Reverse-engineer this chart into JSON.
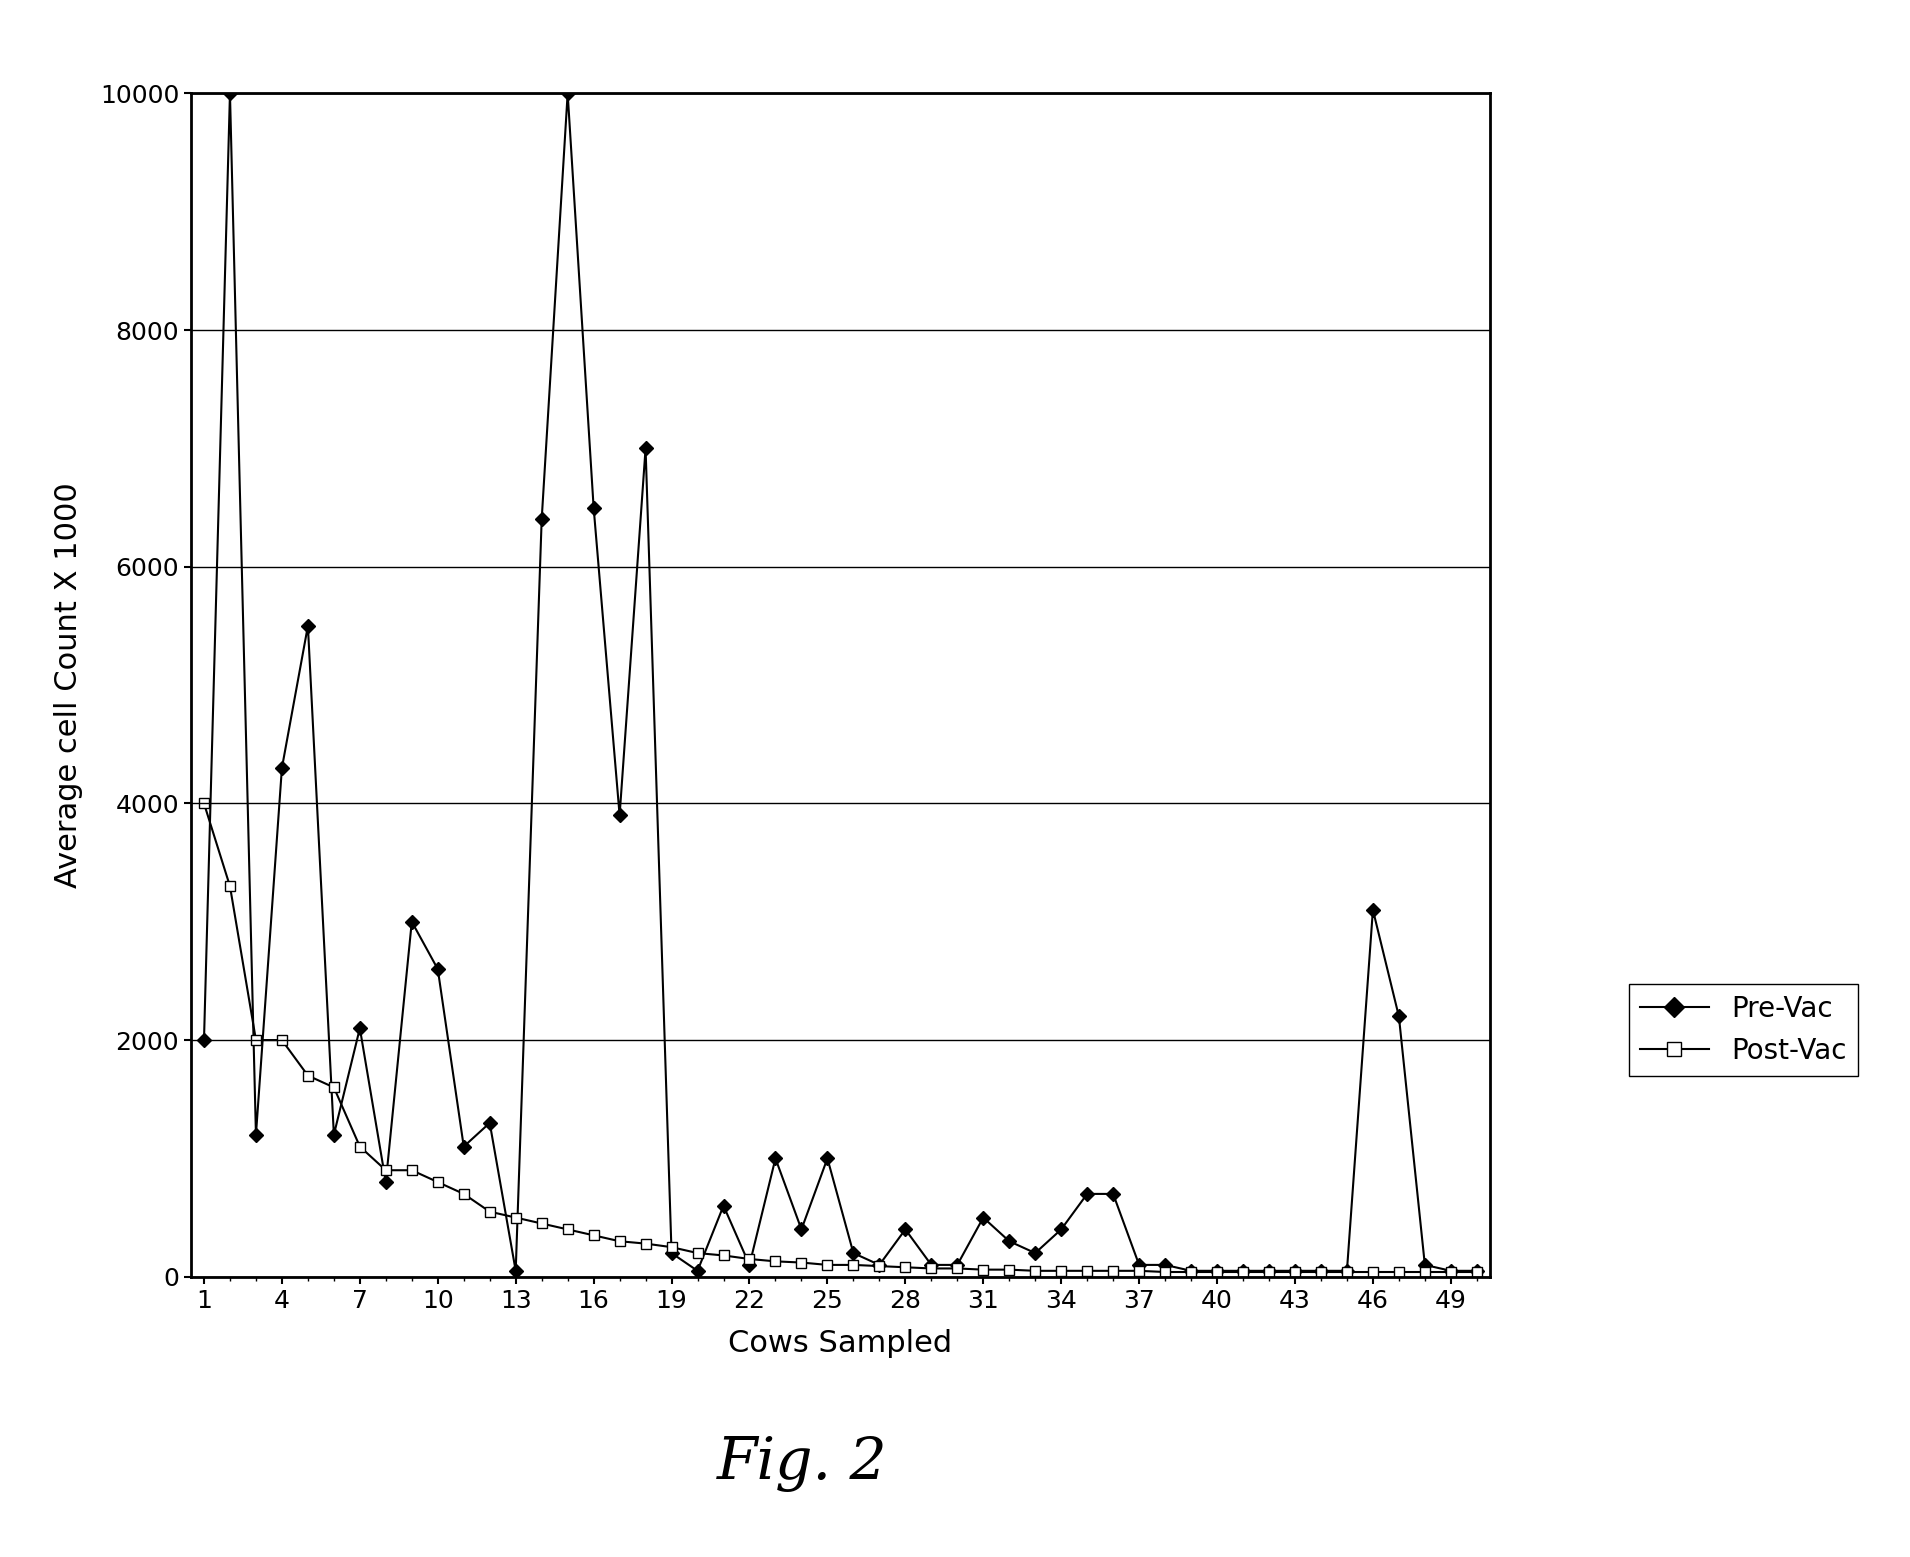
{
  "pre_vac_x": [
    1,
    2,
    3,
    4,
    5,
    6,
    7,
    8,
    9,
    10,
    11,
    12,
    13,
    14,
    15,
    16,
    17,
    18,
    19,
    20,
    21,
    22,
    23,
    24,
    25,
    26,
    27,
    28,
    29,
    30,
    31,
    32,
    33,
    34,
    35,
    36,
    37,
    38,
    39,
    40,
    41,
    42,
    43,
    44,
    45,
    46,
    47,
    48,
    49,
    50
  ],
  "pre_vac_y": [
    2000,
    10000,
    1200,
    4300,
    5500,
    1200,
    2100,
    800,
    3000,
    2600,
    1100,
    1300,
    50,
    6400,
    10000,
    6500,
    3900,
    7000,
    200,
    50,
    600,
    100,
    1000,
    400,
    1000,
    200,
    100,
    400,
    100,
    100,
    500,
    300,
    200,
    400,
    700,
    700,
    100,
    100,
    50,
    50,
    50,
    50,
    50,
    50,
    50,
    3100,
    2200,
    100,
    50,
    50
  ],
  "post_vac_x": [
    1,
    2,
    3,
    4,
    5,
    6,
    7,
    8,
    9,
    10,
    11,
    12,
    13,
    14,
    15,
    16,
    17,
    18,
    19,
    20,
    21,
    22,
    23,
    24,
    25,
    26,
    27,
    28,
    29,
    30,
    31,
    32,
    33,
    34,
    35,
    36,
    37,
    38,
    39,
    40,
    41,
    42,
    43,
    44,
    45,
    46,
    47,
    48,
    49,
    50
  ],
  "post_vac_y": [
    4000,
    3300,
    2000,
    2000,
    1700,
    1600,
    1100,
    900,
    900,
    800,
    700,
    550,
    500,
    450,
    400,
    350,
    300,
    280,
    250,
    200,
    180,
    150,
    130,
    120,
    100,
    100,
    90,
    80,
    70,
    70,
    60,
    60,
    50,
    50,
    50,
    50,
    50,
    40,
    40,
    40,
    40,
    40,
    40,
    40,
    40,
    40,
    40,
    40,
    40,
    40
  ],
  "xlabel": "Cows Sampled",
  "ylabel": "Average cell Count X 1000",
  "ylim": [
    0,
    10000
  ],
  "xlim": [
    0.5,
    50.5
  ],
  "yticks": [
    0,
    2000,
    4000,
    6000,
    8000,
    10000
  ],
  "xticks": [
    1,
    4,
    7,
    10,
    13,
    16,
    19,
    22,
    25,
    28,
    31,
    34,
    37,
    40,
    43,
    46,
    49
  ],
  "legend_pre": "Pre-Vac",
  "legend_post": "Post-Vac",
  "figure_caption": "Fig. 2",
  "background_color": "#ffffff",
  "line_color": "#000000"
}
